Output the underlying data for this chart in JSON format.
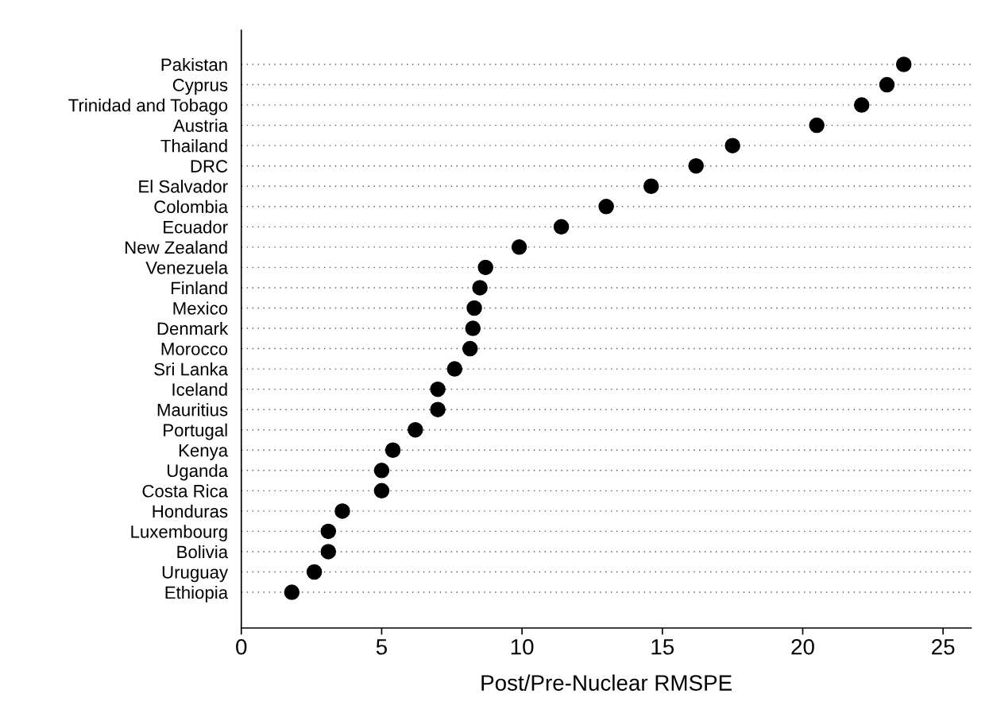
{
  "chart_data": {
    "type": "scatter",
    "orientation": "horizontal",
    "xlabel": "Post/Pre-Nuclear RMSPE",
    "categories": [
      "Pakistan",
      "Cyprus",
      "Trinidad and Tobago",
      "Austria",
      "Thailand",
      "DRC",
      "El Salvador",
      "Colombia",
      "Ecuador",
      "New Zealand",
      "Venezuela",
      "Finland",
      "Mexico",
      "Denmark",
      "Morocco",
      "Sri Lanka",
      "Iceland",
      "Mauritius",
      "Portugal",
      "Kenya",
      "Uganda",
      "Costa Rica",
      "Honduras",
      "Luxembourg",
      "Bolivia",
      "Uruguay",
      "Ethiopia"
    ],
    "series": [
      {
        "color": "#000000",
        "values": [
          23.6,
          23.0,
          22.1,
          20.5,
          17.5,
          16.2,
          14.6,
          13.0,
          11.4,
          9.9,
          8.7,
          8.5,
          8.3,
          8.25,
          8.15,
          7.6,
          7.0,
          7.0,
          6.2,
          5.4,
          5.0,
          5.0,
          3.6,
          3.1,
          3.1,
          2.6,
          1.8
        ]
      }
    ],
    "xlim": [
      0,
      26
    ],
    "xticks": [
      0,
      5,
      10,
      15,
      20,
      25
    ],
    "grid": "y",
    "marker": "circle"
  }
}
